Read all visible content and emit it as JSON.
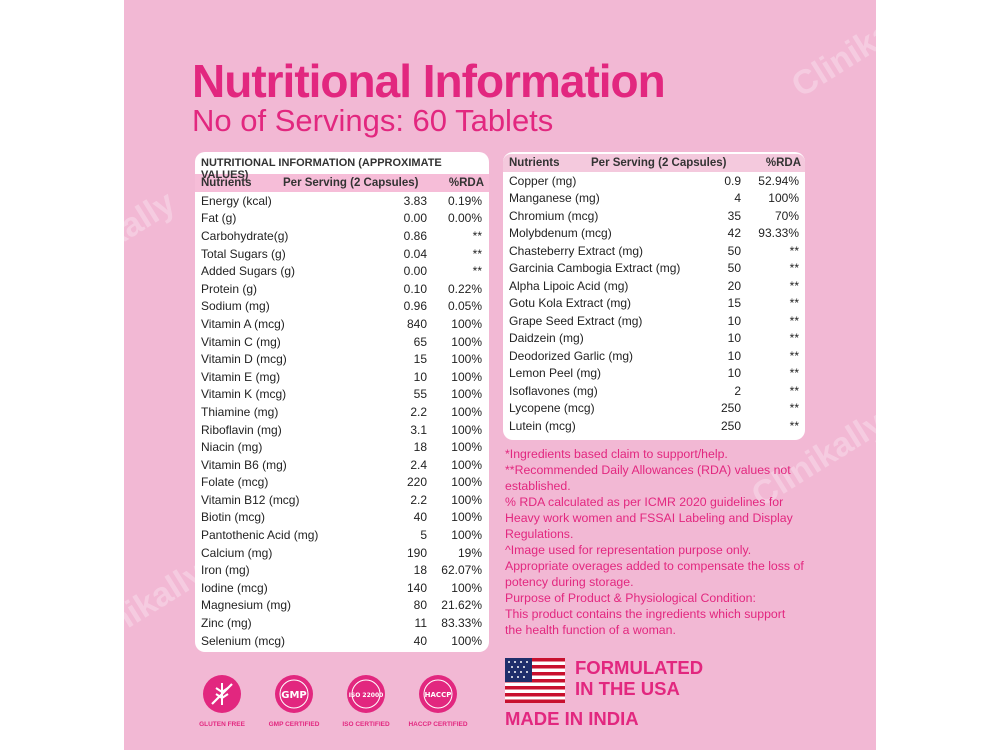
{
  "heading": "Nutritional Information",
  "subheading": "No of Servings: 60 Tablets",
  "watermark": "Clinikally",
  "table1": {
    "title": "NUTRITIONAL INFORMATION (APPROXIMATE VALUES)",
    "headers": [
      "Nutrients",
      "Per Serving (2 Capsules)",
      "%RDA"
    ],
    "rows": [
      [
        "Energy (kcal)",
        "3.83",
        "0.19%"
      ],
      [
        "Fat (g)",
        "0.00",
        "0.00%"
      ],
      [
        "Carbohydrate(g)",
        "0.86",
        "**"
      ],
      [
        "Total Sugars (g)",
        "0.04",
        "**"
      ],
      [
        "Added Sugars (g)",
        "0.00",
        "**"
      ],
      [
        "Protein (g)",
        "0.10",
        "0.22%"
      ],
      [
        "Sodium (mg)",
        "0.96",
        "0.05%"
      ],
      [
        "Vitamin A (mcg)",
        "840",
        "100%"
      ],
      [
        "Vitamin C (mg)",
        "65",
        "100%"
      ],
      [
        "Vitamin D (mcg)",
        "15",
        "100%"
      ],
      [
        "Vitamin E (mg)",
        "10",
        "100%"
      ],
      [
        "Vitamin K (mcg)",
        "55",
        "100%"
      ],
      [
        "Thiamine (mg)",
        "2.2",
        "100%"
      ],
      [
        "Riboflavin (mg)",
        "3.1",
        "100%"
      ],
      [
        "Niacin (mg)",
        "18",
        "100%"
      ],
      [
        "Vitamin B6 (mg)",
        "2.4",
        "100%"
      ],
      [
        "Folate (mcg)",
        "220",
        "100%"
      ],
      [
        "Vitamin B12 (mcg)",
        "2.2",
        "100%"
      ],
      [
        "Biotin (mcg)",
        "40",
        "100%"
      ],
      [
        "Pantothenic Acid (mg)",
        "5",
        "100%"
      ],
      [
        "Calcium (mg)",
        "190",
        "19%"
      ],
      [
        "Iron (mg)",
        "18",
        "62.07%"
      ],
      [
        "Iodine (mcg)",
        "140",
        "100%"
      ],
      [
        "Magnesium (mg)",
        "80",
        "21.62%"
      ],
      [
        "Zinc (mg)",
        "11",
        "83.33%"
      ],
      [
        "Selenium (mcg)",
        "40",
        "100%"
      ]
    ]
  },
  "table2": {
    "headers": [
      "Nutrients",
      "Per Serving (2 Capsules)",
      "%RDA"
    ],
    "rows": [
      [
        "Copper (mg)",
        "0.9",
        "52.94%"
      ],
      [
        "Manganese (mg)",
        "4",
        "100%"
      ],
      [
        "Chromium (mcg)",
        "35",
        "70%"
      ],
      [
        "Molybdenum (mcg)",
        "42",
        "93.33%"
      ],
      [
        "Chasteberry Extract (mg)",
        "50",
        "**"
      ],
      [
        "Garcinia Cambogia Extract (mg)",
        "50",
        "**"
      ],
      [
        "Alpha Lipoic Acid (mg)",
        "20",
        "**"
      ],
      [
        "Gotu Kola Extract (mg)",
        "15",
        "**"
      ],
      [
        "Grape Seed Extract (mg)",
        "10",
        "**"
      ],
      [
        "Daidzein (mg)",
        "10",
        "**"
      ],
      [
        "Deodorized Garlic (mg)",
        "10",
        "**"
      ],
      [
        "Lemon Peel (mg)",
        "10",
        "**"
      ],
      [
        "Isoflavones (mg)",
        "2",
        "**"
      ],
      [
        "Lycopene (mcg)",
        "250",
        "**"
      ],
      [
        "Lutein (mcg)",
        "250",
        "**"
      ]
    ]
  },
  "notes": [
    "*Ingredients based claim to support/help.",
    "**Recommended Daily Allowances (RDA) values not established.",
    "% RDA calculated as per ICMR 2020 guidelines for Heavy work women and FSSAI Labeling and Display Regulations.",
    "^Image used for representation purpose only.",
    "Appropriate overages added to compensate the loss of potency during storage.",
    "Purpose of Product & Physiological Condition:",
    "This product contains the ingredients which support the health function of a woman."
  ],
  "formulated_line1": "FORMULATED",
  "formulated_line2": "IN THE USA",
  "made_in": "MADE IN INDIA",
  "badges": [
    {
      "label": "GLUTEN FREE",
      "icon": "gluten-free-icon"
    },
    {
      "label": "GMP CERTIFIED",
      "icon": "gmp-seal-icon",
      "seal_text": "GMP"
    },
    {
      "label": "ISO CERTIFIED",
      "icon": "iso-seal-icon",
      "seal_text": "ISO 22000"
    },
    {
      "label": "HACCP CERTIFIED",
      "icon": "haccp-seal-icon",
      "seal_text": "HACCP"
    }
  ],
  "colors": {
    "accent": "#e2277f",
    "panel": "#f2b8d4",
    "header_row": "#f6bdd8"
  }
}
